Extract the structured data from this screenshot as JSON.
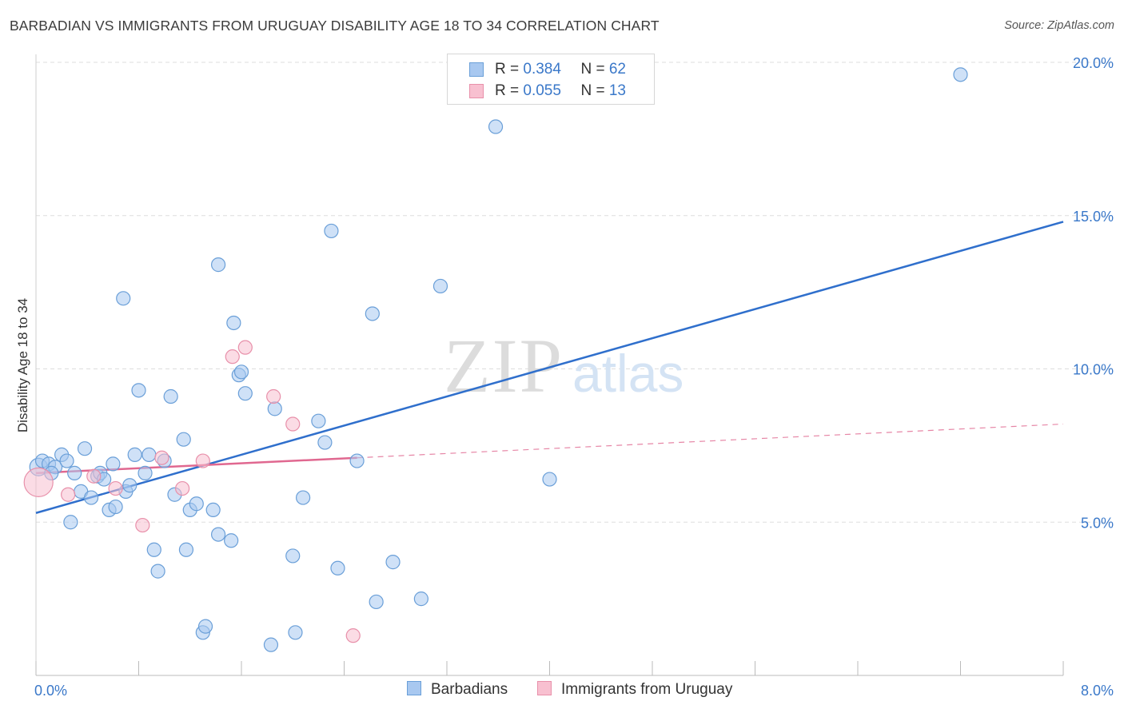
{
  "header": {
    "title": "BARBADIAN VS IMMIGRANTS FROM URUGUAY DISABILITY AGE 18 TO 34 CORRELATION CHART",
    "source": "Source: ZipAtlas.com"
  },
  "legend": {
    "rows": [
      {
        "r_label": "R = ",
        "r_value": "0.384",
        "n_label": "N = ",
        "n_value": "62"
      },
      {
        "r_label": "R = ",
        "r_value": "0.055",
        "n_label": "N = ",
        "n_value": "13"
      }
    ]
  },
  "bottom_legend": {
    "barbadians": "Barbadians",
    "uruguay": "Immigrants from Uruguay"
  },
  "watermark": {
    "zip": "ZIP",
    "atlas": "atlas"
  },
  "colors": {
    "blue_fill": "#a8c8f0",
    "blue_stroke": "#6a9fd8",
    "blue_line": "#2f6fcc",
    "pink_fill": "#f8c0d0",
    "pink_stroke": "#e890aa",
    "pink_line": "#e06890",
    "tick_text": "#3a78c9"
  },
  "chart_data": {
    "type": "scatter",
    "title": "BARBADIAN VS IMMIGRANTS FROM URUGUAY DISABILITY AGE 18 TO 34 CORRELATION CHART",
    "xlabel": "",
    "ylabel": "Disability Age 18 to 34",
    "xlim": [
      0,
      8
    ],
    "ylim": [
      0,
      20
    ],
    "x_tick_labels": [
      {
        "value": 0,
        "label": "0.0%"
      },
      {
        "value": 8,
        "label": "8.0%"
      }
    ],
    "y_tick_labels": [
      {
        "value": 5,
        "label": "5.0%"
      },
      {
        "value": 10,
        "label": "10.0%"
      },
      {
        "value": 15,
        "label": "15.0%"
      },
      {
        "value": 20,
        "label": "20.0%"
      }
    ],
    "grid": "horizontal dashed",
    "legend_position": "top-center",
    "series": [
      {
        "name": "Barbadians",
        "r": 0.384,
        "n": 62,
        "trend": {
          "x": [
            0,
            8
          ],
          "y": [
            5.3,
            14.8
          ],
          "style": "solid"
        },
        "points": [
          {
            "x": 0.02,
            "y": 6.8
          },
          {
            "x": 0.05,
            "y": 7.0
          },
          {
            "x": 0.1,
            "y": 6.9
          },
          {
            "x": 0.15,
            "y": 6.8
          },
          {
            "x": 0.2,
            "y": 7.2
          },
          {
            "x": 0.24,
            "y": 7.0
          },
          {
            "x": 0.27,
            "y": 5.0
          },
          {
            "x": 0.3,
            "y": 6.6
          },
          {
            "x": 0.35,
            "y": 6.0
          },
          {
            "x": 0.38,
            "y": 7.4
          },
          {
            "x": 0.43,
            "y": 5.8
          },
          {
            "x": 0.48,
            "y": 6.5
          },
          {
            "x": 0.5,
            "y": 6.6
          },
          {
            "x": 0.53,
            "y": 6.4
          },
          {
            "x": 0.57,
            "y": 5.4
          },
          {
            "x": 0.6,
            "y": 6.9
          },
          {
            "x": 0.62,
            "y": 5.5
          },
          {
            "x": 0.68,
            "y": 12.3
          },
          {
            "x": 0.7,
            "y": 6.0
          },
          {
            "x": 0.73,
            "y": 6.2
          },
          {
            "x": 0.77,
            "y": 7.2
          },
          {
            "x": 0.8,
            "y": 9.3
          },
          {
            "x": 0.85,
            "y": 6.6
          },
          {
            "x": 0.88,
            "y": 7.2
          },
          {
            "x": 0.92,
            "y": 4.1
          },
          {
            "x": 0.95,
            "y": 3.4
          },
          {
            "x": 1.0,
            "y": 7.0
          },
          {
            "x": 1.05,
            "y": 9.1
          },
          {
            "x": 1.08,
            "y": 5.9
          },
          {
            "x": 1.15,
            "y": 7.7
          },
          {
            "x": 1.17,
            "y": 4.1
          },
          {
            "x": 1.2,
            "y": 5.4
          },
          {
            "x": 1.25,
            "y": 5.6
          },
          {
            "x": 1.3,
            "y": 1.4
          },
          {
            "x": 1.32,
            "y": 1.6
          },
          {
            "x": 1.38,
            "y": 5.4
          },
          {
            "x": 1.42,
            "y": 4.6
          },
          {
            "x": 1.42,
            "y": 13.4
          },
          {
            "x": 1.52,
            "y": 4.4
          },
          {
            "x": 1.54,
            "y": 11.5
          },
          {
            "x": 1.58,
            "y": 9.8
          },
          {
            "x": 1.6,
            "y": 9.9
          },
          {
            "x": 1.63,
            "y": 9.2
          },
          {
            "x": 1.86,
            "y": 8.7
          },
          {
            "x": 1.83,
            "y": 1.0
          },
          {
            "x": 2.0,
            "y": 3.9
          },
          {
            "x": 2.02,
            "y": 1.4
          },
          {
            "x": 2.08,
            "y": 5.8
          },
          {
            "x": 2.2,
            "y": 8.3
          },
          {
            "x": 2.25,
            "y": 7.6
          },
          {
            "x": 2.3,
            "y": 14.5
          },
          {
            "x": 2.35,
            "y": 3.5
          },
          {
            "x": 2.5,
            "y": 7.0
          },
          {
            "x": 2.62,
            "y": 11.8
          },
          {
            "x": 2.65,
            "y": 2.4
          },
          {
            "x": 2.78,
            "y": 3.7
          },
          {
            "x": 3.0,
            "y": 2.5
          },
          {
            "x": 3.15,
            "y": 12.7
          },
          {
            "x": 3.58,
            "y": 17.9
          },
          {
            "x": 4.0,
            "y": 6.4
          },
          {
            "x": 7.2,
            "y": 19.6
          },
          {
            "x": 0.12,
            "y": 6.6
          }
        ]
      },
      {
        "name": "Immigrants from Uruguay",
        "r": 0.055,
        "n": 13,
        "trend": {
          "x": [
            0,
            2.5
          ],
          "y": [
            6.6,
            7.1
          ],
          "style": "solid"
        },
        "trend_extension": {
          "x": [
            2.5,
            8
          ],
          "y": [
            7.1,
            8.2
          ],
          "style": "dashed"
        },
        "points": [
          {
            "x": 0.02,
            "y": 6.3
          },
          {
            "x": 0.25,
            "y": 5.9
          },
          {
            "x": 0.45,
            "y": 6.5
          },
          {
            "x": 0.62,
            "y": 6.1
          },
          {
            "x": 0.83,
            "y": 4.9
          },
          {
            "x": 0.98,
            "y": 7.1
          },
          {
            "x": 1.14,
            "y": 6.1
          },
          {
            "x": 1.3,
            "y": 7.0
          },
          {
            "x": 1.53,
            "y": 10.4
          },
          {
            "x": 1.63,
            "y": 10.7
          },
          {
            "x": 1.85,
            "y": 9.1
          },
          {
            "x": 2.0,
            "y": 8.2
          },
          {
            "x": 2.47,
            "y": 1.3
          }
        ]
      }
    ]
  }
}
